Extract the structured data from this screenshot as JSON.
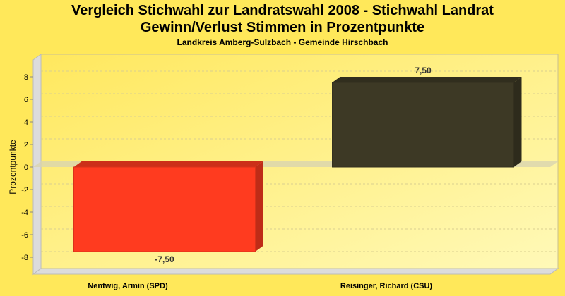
{
  "chart_data": {
    "type": "bar",
    "title": "Vergleich Stichwahl zur Landratswahl 2008 - Stichwahl Landrat",
    "subtitle": "Gewinn/Verlust Stimmen in Prozentpunkte",
    "subsubtitle": "Landkreis Amberg-Sulzbach - Gemeinde Hirschbach",
    "xlabel": "",
    "ylabel": "Prozentpunkte",
    "ylim": [
      -9.5,
      9.5
    ],
    "yticks": [
      -8,
      -6,
      -4,
      -2,
      0,
      2,
      4,
      6,
      8
    ],
    "grid": true,
    "categories": [
      "Nentwig, Armin (SPD)",
      "Reisinger, Richard (CSU)"
    ],
    "values": [
      -7.5,
      7.5
    ],
    "data_labels": [
      "-7,50",
      "7,50"
    ],
    "colors": [
      "#ff3b1f",
      "#3d3925"
    ]
  }
}
